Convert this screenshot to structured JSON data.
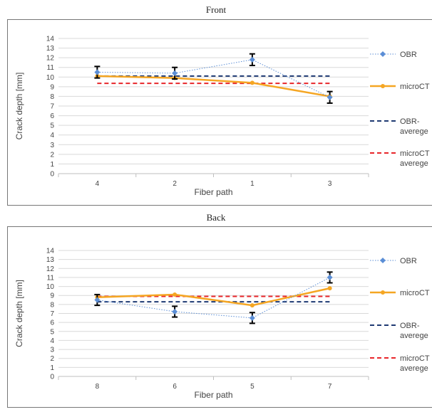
{
  "chart_data": [
    {
      "type": "line",
      "title": "Front",
      "xlabel": "Fiber path",
      "ylabel": "Crack depth [mm]",
      "categories": [
        "4",
        "2",
        "1",
        "3"
      ],
      "ylim": [
        0,
        14
      ],
      "yticks": [
        0,
        1,
        2,
        3,
        4,
        5,
        6,
        7,
        8,
        9,
        10,
        11,
        12,
        13,
        14
      ],
      "grid": true,
      "legend_position": "right",
      "series": [
        {
          "name": "OBR",
          "values": [
            10.5,
            10.4,
            11.8,
            7.9
          ],
          "error": [
            0.6,
            0.6,
            0.6,
            0.6
          ],
          "color": "#5b8ed6",
          "style": "dotted-diamond"
        },
        {
          "name": "microCT",
          "values": [
            10.1,
            9.9,
            9.4,
            8.0
          ],
          "color": "#f5a623",
          "style": "solid-circle"
        },
        {
          "name": "OBR-averege",
          "values": [
            10.1,
            10.1,
            10.1,
            10.1
          ],
          "color": "#1f3a73",
          "style": "dashed"
        },
        {
          "name": "microCT averege",
          "values": [
            9.35,
            9.35,
            9.35,
            9.35
          ],
          "color": "#e8262a",
          "style": "dashed"
        }
      ]
    },
    {
      "type": "line",
      "title": "Back",
      "xlabel": "Fiber path",
      "ylabel": "Crack depth [mm]",
      "categories": [
        "8",
        "6",
        "5",
        "7"
      ],
      "ylim": [
        0,
        14
      ],
      "yticks": [
        0,
        1,
        2,
        3,
        4,
        5,
        6,
        7,
        8,
        9,
        10,
        11,
        12,
        13,
        14
      ],
      "grid": true,
      "legend_position": "right",
      "series": [
        {
          "name": "OBR",
          "values": [
            8.5,
            7.2,
            6.5,
            11.0
          ],
          "error": [
            0.6,
            0.6,
            0.6,
            0.6
          ],
          "color": "#5b8ed6",
          "style": "dotted-diamond"
        },
        {
          "name": "microCT",
          "values": [
            8.8,
            9.1,
            7.9,
            9.8
          ],
          "color": "#f5a623",
          "style": "solid-circle"
        },
        {
          "name": "OBR-averege",
          "values": [
            8.3,
            8.3,
            8.3,
            8.3
          ],
          "color": "#1f3a73",
          "style": "dashed"
        },
        {
          "name": "microCT averege",
          "values": [
            8.9,
            8.9,
            8.9,
            8.9
          ],
          "color": "#e8262a",
          "style": "dashed"
        }
      ]
    }
  ],
  "legend_lines": {
    "obr": [
      "OBR"
    ],
    "microct": [
      "microCT"
    ],
    "obr_avg": [
      "OBR-",
      "averege"
    ],
    "microct_avg": [
      "microCT",
      "averege"
    ]
  }
}
